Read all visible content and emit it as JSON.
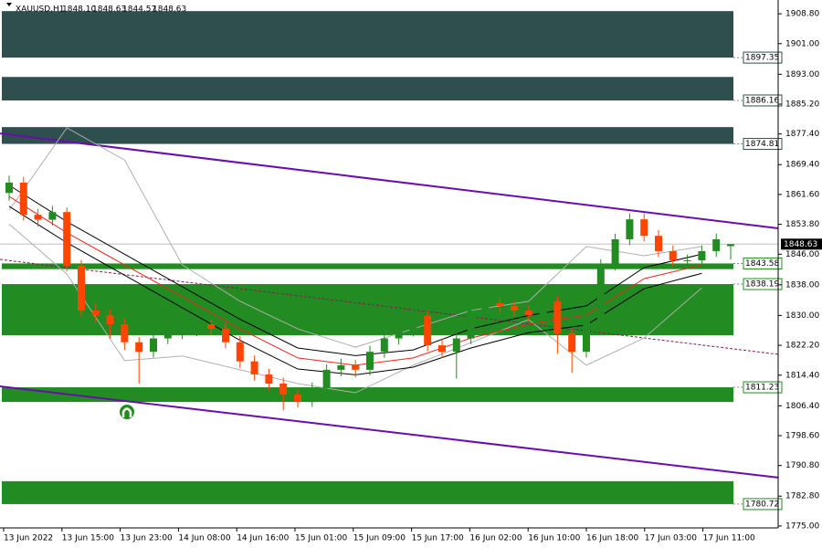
{
  "chart_data": {
    "type": "candlestick",
    "title": "XAUUSD,H1",
    "header_values": [
      {
        "value": 1848.1,
        "label": "1848.10"
      },
      1848.63,
      1844.57,
      1848.63
    ],
    "x_labels": [
      "13 Jun 2022",
      "13 Jun 15:00",
      "13 Jun 23:00",
      "14 Jun 08:00",
      "14 Jun 16:00",
      "15 Jun 01:00",
      "15 Jun 09:00",
      "15 Jun 17:00",
      "16 Jun 02:00",
      "16 Jun 10:00",
      "16 Jun 18:00",
      "17 Jun 03:00",
      "17 Jun 11:00"
    ],
    "ylim": [
      1774.5,
      1912.4
    ],
    "yticks": [
      {
        "value": 1908.8,
        "label": "1908.80"
      },
      {
        "value": 1901.0,
        "label": "1901.00"
      },
      {
        "value": 1893.0,
        "label": "1893.00"
      },
      {
        "value": 1885.2,
        "label": "1885.20"
      },
      {
        "value": 1877.4,
        "label": "1877.40"
      },
      {
        "value": 1869.4,
        "label": "1869.40"
      },
      {
        "value": 1861.6,
        "label": "1861.60"
      },
      {
        "value": 1853.8,
        "label": "1853.80"
      },
      {
        "value": 1846.0,
        "label": "1846.00"
      },
      {
        "value": 1838.0,
        "label": "1838.00"
      },
      {
        "value": 1830.0,
        "label": "1830.00"
      },
      {
        "value": 1822.2,
        "label": "1822.20"
      },
      {
        "value": 1814.4,
        "label": "1814.40"
      },
      {
        "value": 1806.4,
        "label": "1806.40"
      },
      {
        "value": 1798.6,
        "label": "1798.60"
      },
      {
        "value": 1790.8,
        "label": "1790.80"
      },
      {
        "value": 1782.8,
        "label": "1782.80"
      },
      {
        "value": 1775.0,
        "label": "1775.00"
      }
    ],
    "up_color": "#228b22",
    "down_color": "#ff4500",
    "ohlc": {
      "open": [
        1862,
        1864.7,
        1856.3,
        1855,
        1857,
        1843,
        1831.3,
        1830,
        1827.7,
        1823,
        1820.5,
        1824,
        1825.3,
        1826,
        1827.7,
        1826.5,
        1823,
        1818,
        1814.6,
        1812.2,
        1809.3,
        1807.4,
        1811,
        1815.8,
        1817,
        1815.8,
        1820.5,
        1824,
        1826,
        1830,
        1822.2,
        1820.5,
        1824,
        1831.3,
        1833.2,
        1832.5,
        1831.3,
        1830,
        1833.7,
        1825.3,
        1820.5,
        1828.9,
        1843.2,
        1849.9,
        1855.1,
        1850.8,
        1846.8,
        1844.4,
        1844.4,
        1846.8,
        1848.1
      ],
      "high": [
        1866.5,
        1866.2,
        1857.8,
        1858.6,
        1858.2,
        1844.5,
        1833.0,
        1831.6,
        1829.2,
        1824.4,
        1825.6,
        1826.8,
        1827.5,
        1829.3,
        1829.0,
        1828.0,
        1824.6,
        1819.5,
        1816.1,
        1813.7,
        1810.8,
        1812.5,
        1817.2,
        1818.7,
        1818.4,
        1822.1,
        1825.5,
        1827.6,
        1832.8,
        1831.4,
        1823.8,
        1825.6,
        1832.9,
        1834.8,
        1834.7,
        1834.0,
        1832.8,
        1835.2,
        1835.2,
        1826.8,
        1830.4,
        1844.7,
        1851.4,
        1856.6,
        1856.6,
        1852.3,
        1848.3,
        1845.9,
        1848.3,
        1851.4,
        1848.63
      ],
      "low": [
        1860.0,
        1854.8,
        1853.2,
        1853.5,
        1841.5,
        1829.8,
        1828.2,
        1824.0,
        1821.0,
        1812.2,
        1819.0,
        1822.5,
        1823.8,
        1824.6,
        1824.9,
        1821.4,
        1816.3,
        1813.0,
        1810.5,
        1805.2,
        1806.0,
        1806.1,
        1809.6,
        1814.1,
        1813.9,
        1814.3,
        1819.0,
        1822.4,
        1824.5,
        1820.6,
        1818.9,
        1813.5,
        1822.5,
        1829.8,
        1830.9,
        1829.7,
        1828.4,
        1828.5,
        1820.0,
        1815.0,
        1819.0,
        1827.4,
        1841.7,
        1848.4,
        1849.3,
        1845.3,
        1842.9,
        1842.9,
        1842.9,
        1845.3,
        1844.57
      ],
      "close": [
        1864.7,
        1856.3,
        1855,
        1857,
        1843,
        1831.3,
        1830,
        1827.7,
        1823,
        1820.5,
        1824,
        1825.3,
        1826,
        1827.7,
        1826.5,
        1823,
        1818,
        1814.6,
        1812.2,
        1809.3,
        1807.4,
        1811,
        1815.8,
        1817,
        1815.8,
        1820.5,
        1824,
        1826,
        1830,
        1822.2,
        1820.5,
        1824,
        1831.3,
        1833.2,
        1832.5,
        1831.3,
        1830,
        1833.7,
        1825.3,
        1820.5,
        1828.9,
        1843.2,
        1849.9,
        1855.1,
        1850.8,
        1846.8,
        1844.4,
        1844.4,
        1846.8,
        1849.9,
        1848.63
      ]
    },
    "lines": [
      {
        "color": "#b0b0b0",
        "x": [
          0,
          4,
          8,
          12,
          16,
          20,
          24,
          28,
          32,
          36,
          40,
          44,
          48
        ],
        "values": [
          1857.5,
          1879,
          1870.6,
          1843.2,
          1833.7,
          1826.5,
          1821.7,
          1826.5,
          1831.3,
          1833.7,
          1848,
          1845.6,
          1848
        ]
      },
      {
        "color": "#b0b0b0",
        "x": [
          0,
          4,
          8,
          12,
          16,
          20,
          24,
          28,
          32,
          36,
          40,
          44,
          48
        ],
        "values": [
          1853.9,
          1840.8,
          1818.2,
          1819.4,
          1815.8,
          1812.2,
          1809.8,
          1817,
          1822.9,
          1828.9,
          1817,
          1824.1,
          1837.2
        ]
      },
      {
        "color": "#000000",
        "x": [
          0,
          4,
          8,
          12,
          16,
          20,
          24,
          28,
          32,
          36,
          40,
          44,
          48
        ],
        "values": [
          1864,
          1854.5,
          1846,
          1837.5,
          1829,
          1821.5,
          1819.5,
          1821,
          1826.5,
          1830,
          1832.5,
          1842.5,
          1846
        ]
      },
      {
        "color": "#000000",
        "x": [
          0,
          4,
          8,
          12,
          16,
          20,
          24,
          28,
          32,
          36,
          40,
          44,
          48
        ],
        "values": [
          1858.5,
          1849,
          1840.5,
          1832,
          1823.5,
          1816,
          1814.5,
          1816.5,
          1821.5,
          1825.5,
          1827.5,
          1837,
          1841
        ]
      },
      {
        "color": "#e8281c",
        "x": [
          0,
          4,
          8,
          12,
          16,
          20,
          24,
          28,
          32,
          36,
          40,
          44,
          48
        ],
        "values": [
          1861.1,
          1851.6,
          1843.2,
          1834.9,
          1826.5,
          1818.9,
          1817,
          1818.9,
          1824.1,
          1827.7,
          1830.1,
          1839.6,
          1843.2
        ]
      }
    ],
    "zones": [
      {
        "color": "#2f4f4f",
        "level": 1897.35,
        "edge": 1909.5
      },
      {
        "color": "#2f4f4f",
        "level": 1886.16,
        "edge": 1892.3
      },
      {
        "color": "#2f4f4f",
        "level": 1874.81,
        "edge": 1879.2
      },
      {
        "color": "#228b22",
        "level": 1843.58,
        "edge": 1842.1
      },
      {
        "color": "#228b22",
        "level": 1838.19,
        "edge": 1824.8
      },
      {
        "color": "#228b22",
        "level": 1811.23,
        "edge": 1807.4
      },
      {
        "color": "#228b22",
        "level": 1780.72,
        "edge": 1786.7
      }
    ],
    "channels": [
      {
        "color": "#6a0dad",
        "dashed": false,
        "start": 1877.55,
        "end": 1852.75
      },
      {
        "color": "#6a0dad",
        "dashed": false,
        "start": 1811.49,
        "end": 1787.64
      },
      {
        "color": "#8b1a5a",
        "dashed": true,
        "start": 1844.64,
        "end": 1819.84
      }
    ],
    "current_price": 1848.63
  }
}
